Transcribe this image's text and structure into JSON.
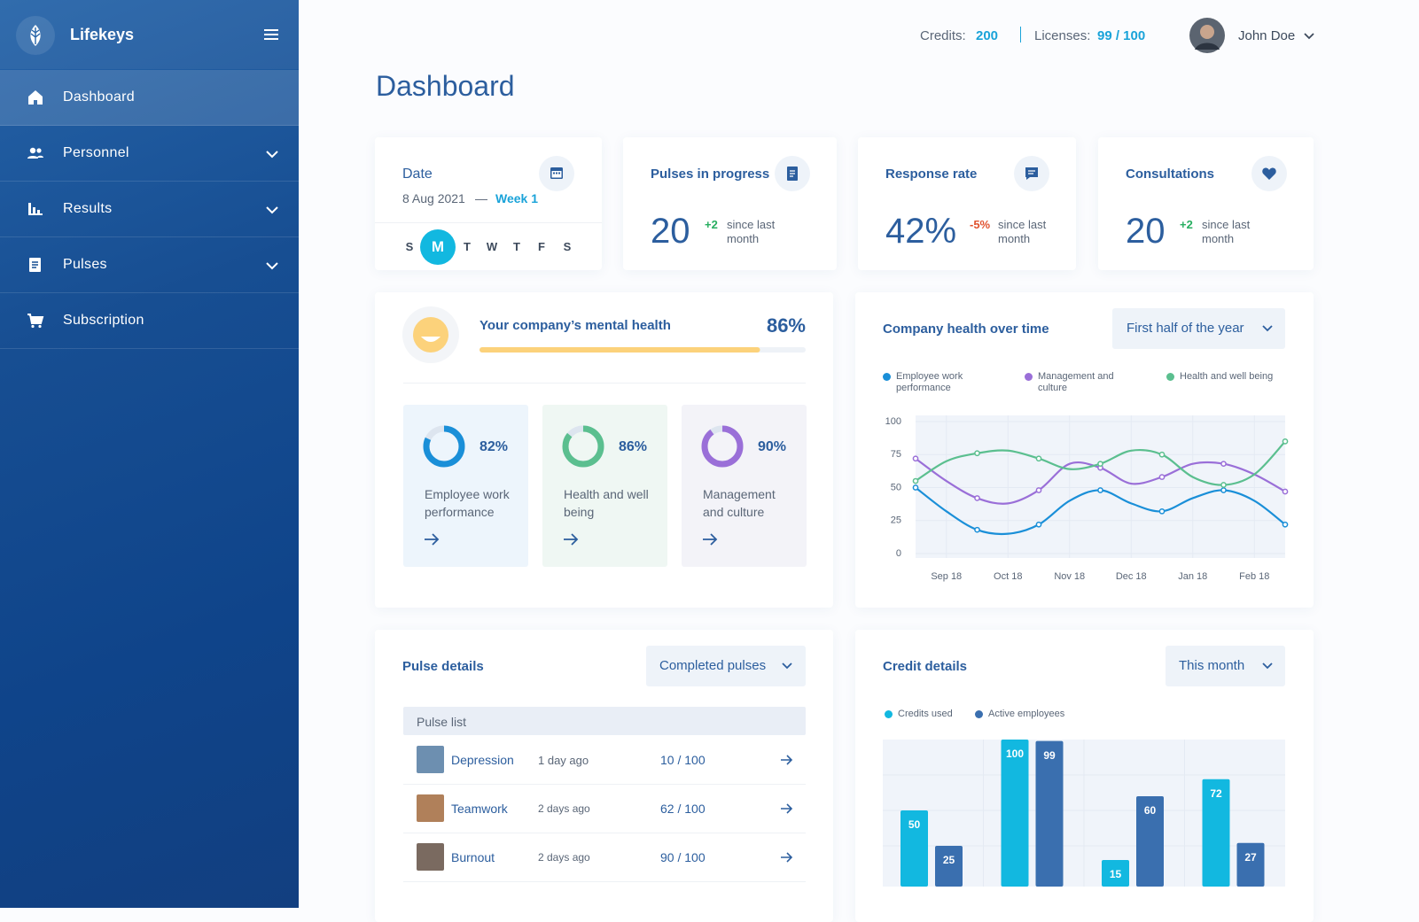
{
  "sidebar": {
    "brand": "Lifekeys",
    "items": [
      {
        "label": "Dashboard",
        "active": true,
        "expandable": false
      },
      {
        "label": "Personnel",
        "active": false,
        "expandable": true
      },
      {
        "label": "Results",
        "active": false,
        "expandable": true
      },
      {
        "label": "Pulses",
        "active": false,
        "expandable": true
      },
      {
        "label": "Subscription",
        "active": false,
        "expandable": false
      }
    ]
  },
  "topbar": {
    "credits_label": "Credits:",
    "credits": 200,
    "licenses_label": "Licenses:",
    "licenses": "99 / 100",
    "user": "John Doe"
  },
  "page_title": "Dashboard",
  "date_card": {
    "title": "Date",
    "date": "8 Aug 2021",
    "dash": "—",
    "week": "Week 1",
    "days": [
      "S",
      "M",
      "T",
      "W",
      "T",
      "F",
      "S"
    ],
    "selected_day": 1
  },
  "stats": [
    {
      "title": "Pulses in progress",
      "value": 20,
      "change": "+2",
      "change_color": "#27ae60",
      "note": "since last month"
    },
    {
      "title": "Response rate",
      "value": "42%",
      "change": "-5%",
      "change_color": "#e0522f",
      "note": "since last month"
    },
    {
      "title": "Consultations",
      "value": 20,
      "change": "+2",
      "change_color": "#27ae60",
      "note": "since last month"
    }
  ],
  "mental_health": {
    "title": "Your company’s mental health",
    "value": 86,
    "value_label": "86%",
    "range": [
      0,
      100
    ],
    "color": "#fcd27b",
    "areas": [
      {
        "name": "Employee work performance",
        "value": 82,
        "value_label": "82%",
        "color": "#1a8fd8",
        "background": "#edf5fc"
      },
      {
        "name": "Health and well being",
        "value": 86,
        "value_label": "86%",
        "color": "#5bbf8f",
        "background": "#eff7f3"
      },
      {
        "name": "Management and culture",
        "value": 90,
        "value_label": "90%",
        "color": "#9a6fd8",
        "background": "#f3f3f8"
      }
    ]
  },
  "chart_data": [
    {
      "type": "line",
      "title": "Company health over time",
      "filter": "First half of the year",
      "categories": [
        null,
        "Sep 18",
        null,
        "Oct 18",
        null,
        "Nov 18",
        null,
        "Dec 18",
        null,
        "Jan 18",
        null,
        "Feb 18",
        null
      ],
      "series": [
        {
          "name": "Employee work performance",
          "color": "#1a8fd8",
          "values": [
            50,
            32,
            18,
            15,
            22,
            40,
            48,
            38,
            32,
            42,
            48,
            40,
            22
          ]
        },
        {
          "name": "Management and culture",
          "color": "#9a6fd8",
          "values": [
            72,
            55,
            42,
            38,
            48,
            68,
            65,
            53,
            58,
            68,
            68,
            60,
            47
          ]
        },
        {
          "name": "Health and well being",
          "color": "#5bbf8f",
          "values": [
            55,
            70,
            76,
            78,
            72,
            64,
            68,
            78,
            75,
            58,
            52,
            60,
            85
          ]
        }
      ],
      "ylim": [
        0,
        100
      ],
      "yticks": [
        0,
        25,
        50,
        75,
        100
      ],
      "grid": true
    },
    {
      "type": "bar",
      "title": "Credit details",
      "filter": "This month",
      "categories": [
        null,
        null,
        null,
        null
      ],
      "series": [
        {
          "name": "Credits used",
          "color": "#12b8e0",
          "values": [
            50,
            100,
            15,
            72
          ]
        },
        {
          "name": "Active employees",
          "color": "#3a6faf",
          "values": [
            25,
            99,
            60,
            27
          ]
        }
      ],
      "ylim": [
        0,
        100
      ]
    }
  ],
  "pulse_details": {
    "title": "Pulse details",
    "filter": "Completed pulses",
    "list_header": "Pulse list",
    "rows": [
      [
        "Depression",
        "1 day ago",
        "10 / 100"
      ],
      [
        "Teamwork",
        "2 days ago",
        "62 / 100"
      ],
      [
        "Burnout",
        "2 days ago",
        "90 / 100"
      ]
    ]
  }
}
